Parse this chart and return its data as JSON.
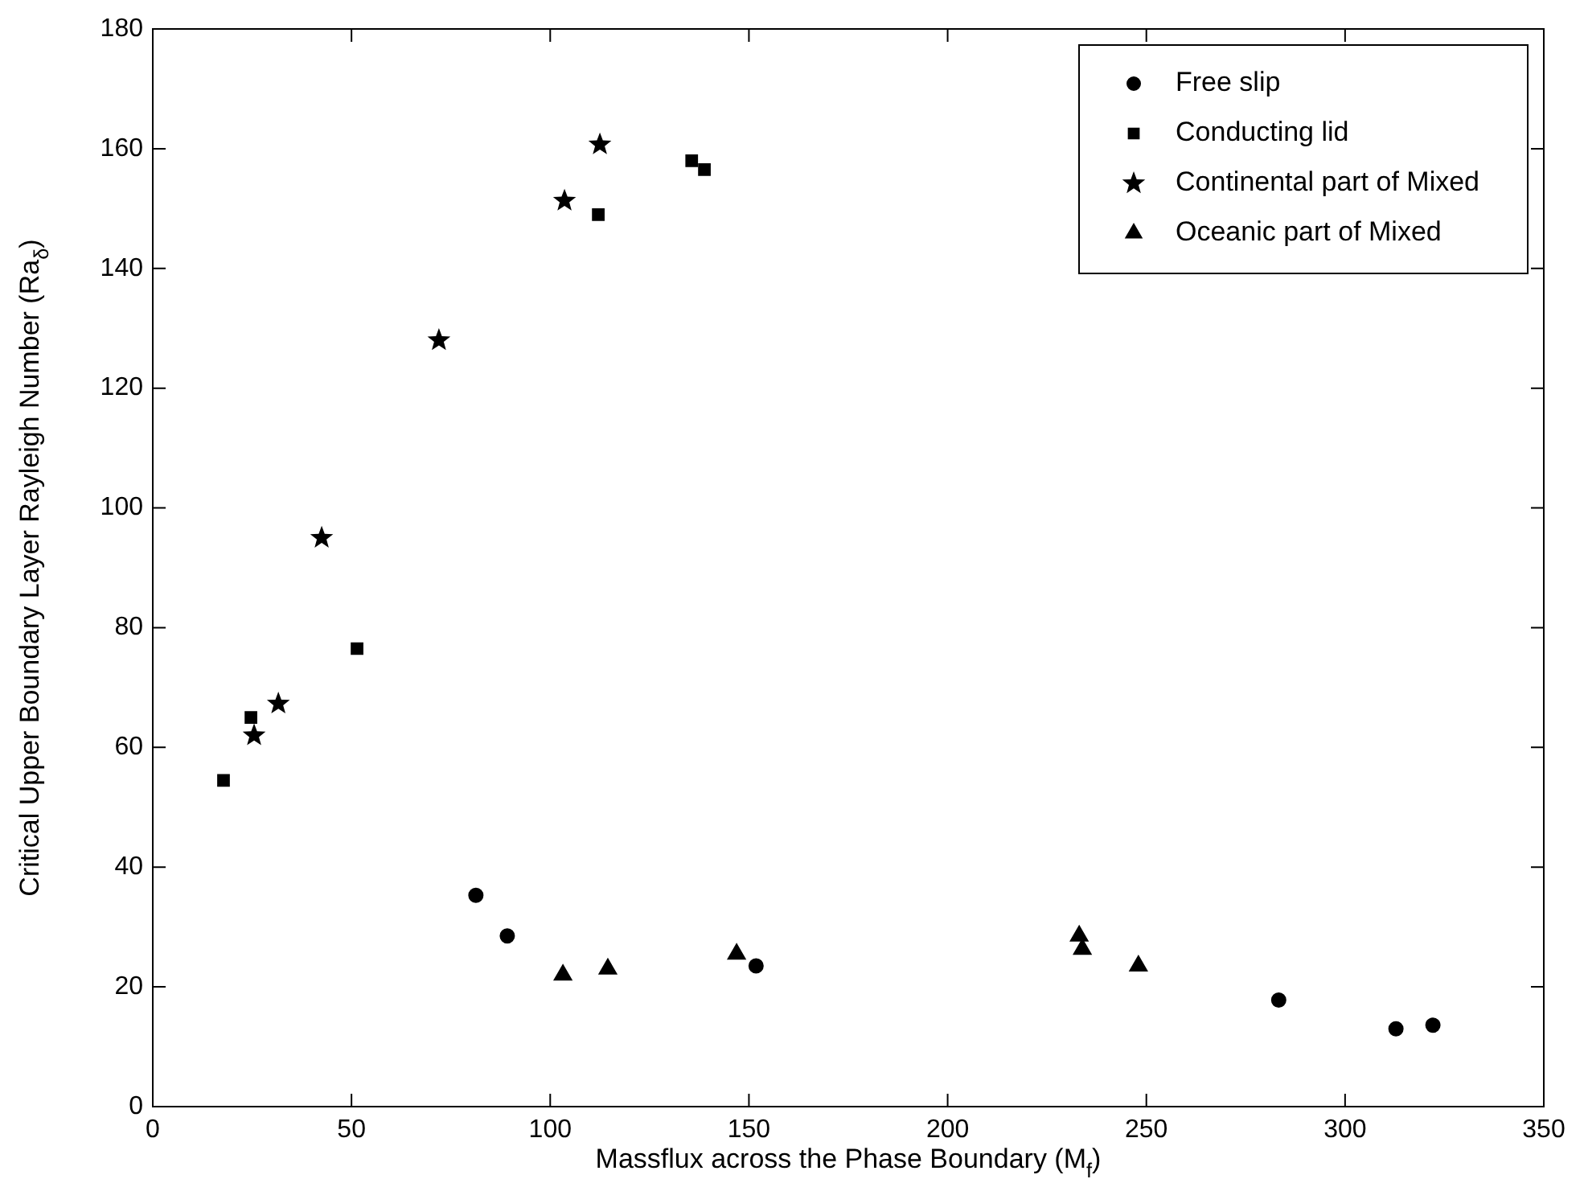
{
  "chart_data": {
    "type": "scatter",
    "xlabel": "Massflux across the Phase Boundary (M$_{f}$)",
    "ylabel": "Critical Upper Boundary Layer Rayleigh Number (Ra$_{δ}$)",
    "xlim": [
      0,
      350
    ],
    "xticks": [
      0,
      50,
      100,
      150,
      200,
      250,
      300,
      350
    ],
    "ylim": [
      0,
      180
    ],
    "yticks": [
      0,
      20,
      40,
      60,
      80,
      100,
      120,
      140,
      160,
      180
    ],
    "grid": false,
    "legend": "top right",
    "series": [
      {
        "name": "Free slip",
        "color": "#000000",
        "marker": "circle",
        "x": [
          81.3,
          89.2,
          151.8,
          283.3,
          312.8,
          322.1
        ],
        "values": [
          35.3,
          28.5,
          23.5,
          17.8,
          13,
          13.6
        ]
      },
      {
        "name": "Conducting lid",
        "color": "#000000",
        "marker": "square",
        "x": [
          17.8,
          24.7,
          51.4,
          112.1,
          135.6,
          138.8
        ],
        "values": [
          54.5,
          65,
          76.5,
          149,
          158,
          156.5
        ]
      },
      {
        "name": "Continental part of Mixed",
        "color": "#000000",
        "marker": "star",
        "x": [
          25.5,
          31.6,
          42.5,
          72,
          103.6,
          112.5
        ],
        "values": [
          62,
          67.3,
          95,
          128,
          151.3,
          160.7
        ]
      },
      {
        "name": "Oceanic part of Mixed",
        "color": "#000000",
        "marker": "triangle",
        "x": [
          103.2,
          114.5,
          146.9,
          233.1,
          233.9,
          248
        ],
        "values": [
          22,
          23,
          25.5,
          28.5,
          26.3,
          23.5
        ]
      }
    ]
  }
}
